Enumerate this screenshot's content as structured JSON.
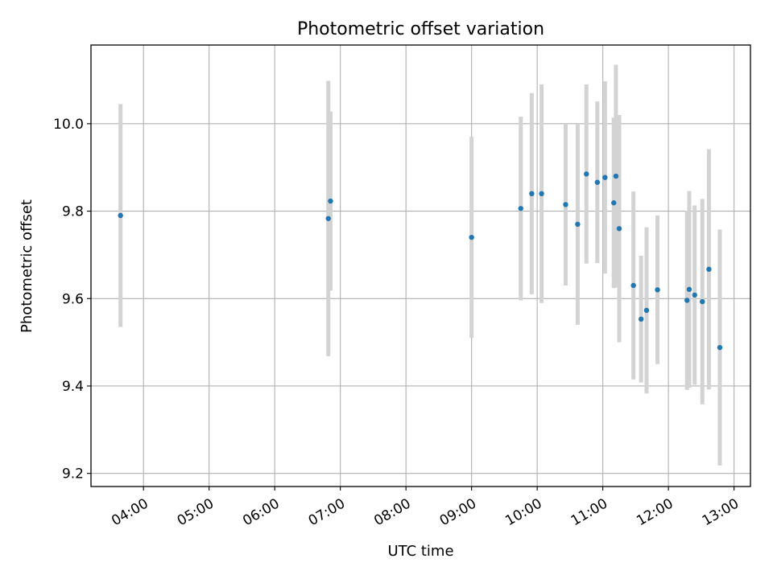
{
  "chart_data": {
    "type": "scatter",
    "title": "Photometric offset variation",
    "xlabel": "UTC time",
    "ylabel": "Photometric offset",
    "x_ticks": [
      "04:00",
      "05:00",
      "06:00",
      "07:00",
      "08:00",
      "09:00",
      "10:00",
      "11:00",
      "12:00",
      "13:00"
    ],
    "y_ticks": [
      "9.2",
      "9.4",
      "9.6",
      "9.8",
      "10.0"
    ],
    "xlim": [
      "03:12",
      "13:15"
    ],
    "ylim": [
      9.17,
      10.18
    ],
    "grid": true,
    "colors": {
      "points": "#1f77b4",
      "errorbars": "#d3d3d3",
      "grid": "#b0b0b0"
    },
    "points": [
      {
        "x": "03:39",
        "y": 9.79,
        "err": 0.255
      },
      {
        "x": "06:49",
        "y": 9.783,
        "err": 0.315
      },
      {
        "x": "06:51",
        "y": 9.823,
        "err": 0.205
      },
      {
        "x": "09:00",
        "y": 9.74,
        "err": 0.23
      },
      {
        "x": "09:45",
        "y": 9.806,
        "err": 0.21
      },
      {
        "x": "09:55",
        "y": 9.84,
        "err": 0.23
      },
      {
        "x": "10:04",
        "y": 9.84,
        "err": 0.25
      },
      {
        "x": "10:26",
        "y": 9.815,
        "err": 0.185
      },
      {
        "x": "10:37",
        "y": 9.77,
        "err": 0.23
      },
      {
        "x": "10:45",
        "y": 9.885,
        "err": 0.205
      },
      {
        "x": "10:55",
        "y": 9.866,
        "err": 0.185
      },
      {
        "x": "11:02",
        "y": 9.877,
        "err": 0.22
      },
      {
        "x": "11:10",
        "y": 9.819,
        "err": 0.195
      },
      {
        "x": "11:12",
        "y": 9.88,
        "err": 0.255
      },
      {
        "x": "11:15",
        "y": 9.76,
        "err": 0.26
      },
      {
        "x": "11:28",
        "y": 9.63,
        "err": 0.215
      },
      {
        "x": "11:35",
        "y": 9.553,
        "err": 0.145
      },
      {
        "x": "11:40",
        "y": 9.573,
        "err": 0.19
      },
      {
        "x": "11:50",
        "y": 9.62,
        "err": 0.17
      },
      {
        "x": "12:17",
        "y": 9.596,
        "err": 0.205
      },
      {
        "x": "12:19",
        "y": 9.621,
        "err": 0.225
      },
      {
        "x": "12:24",
        "y": 9.608,
        "err": 0.205
      },
      {
        "x": "12:31",
        "y": 9.593,
        "err": 0.235
      },
      {
        "x": "12:37",
        "y": 9.667,
        "err": 0.275
      },
      {
        "x": "12:47",
        "y": 9.488,
        "err": 0.27
      }
    ]
  }
}
